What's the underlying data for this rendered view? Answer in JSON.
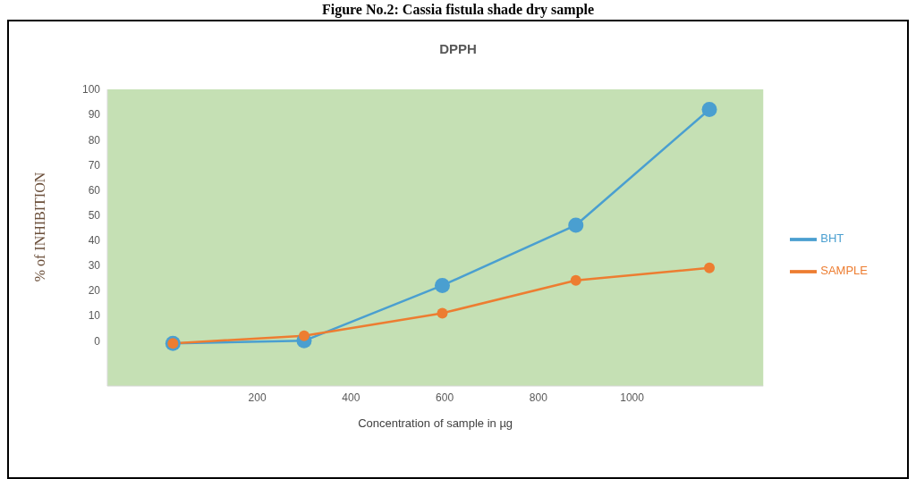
{
  "chart_data": {
    "type": "line",
    "title": "Figure No.2: Cassia fistula shade dry sample",
    "subtitle": "DPPH",
    "xlabel": "Concentration of sample in µg",
    "ylabel": "% of INHIBITION",
    "x": [
      20,
      300,
      595,
      880,
      1165
    ],
    "series": [
      {
        "name": "BHT",
        "color": "#4a9fd0",
        "values": [
          -1,
          0,
          22,
          46,
          92
        ]
      },
      {
        "name": "SAMPLE",
        "color": "#ed7d31",
        "values": [
          -1,
          2,
          11,
          24,
          29
        ]
      }
    ],
    "xlim": [
      -120,
      1280
    ],
    "xticks": [
      200,
      400,
      600,
      800,
      1000
    ],
    "ylim": [
      -18,
      100
    ],
    "yticks": [
      0,
      10,
      20,
      30,
      40,
      50,
      60,
      70,
      80,
      90,
      100
    ],
    "legend": "right",
    "marker": "circle",
    "line_style": "solid"
  }
}
